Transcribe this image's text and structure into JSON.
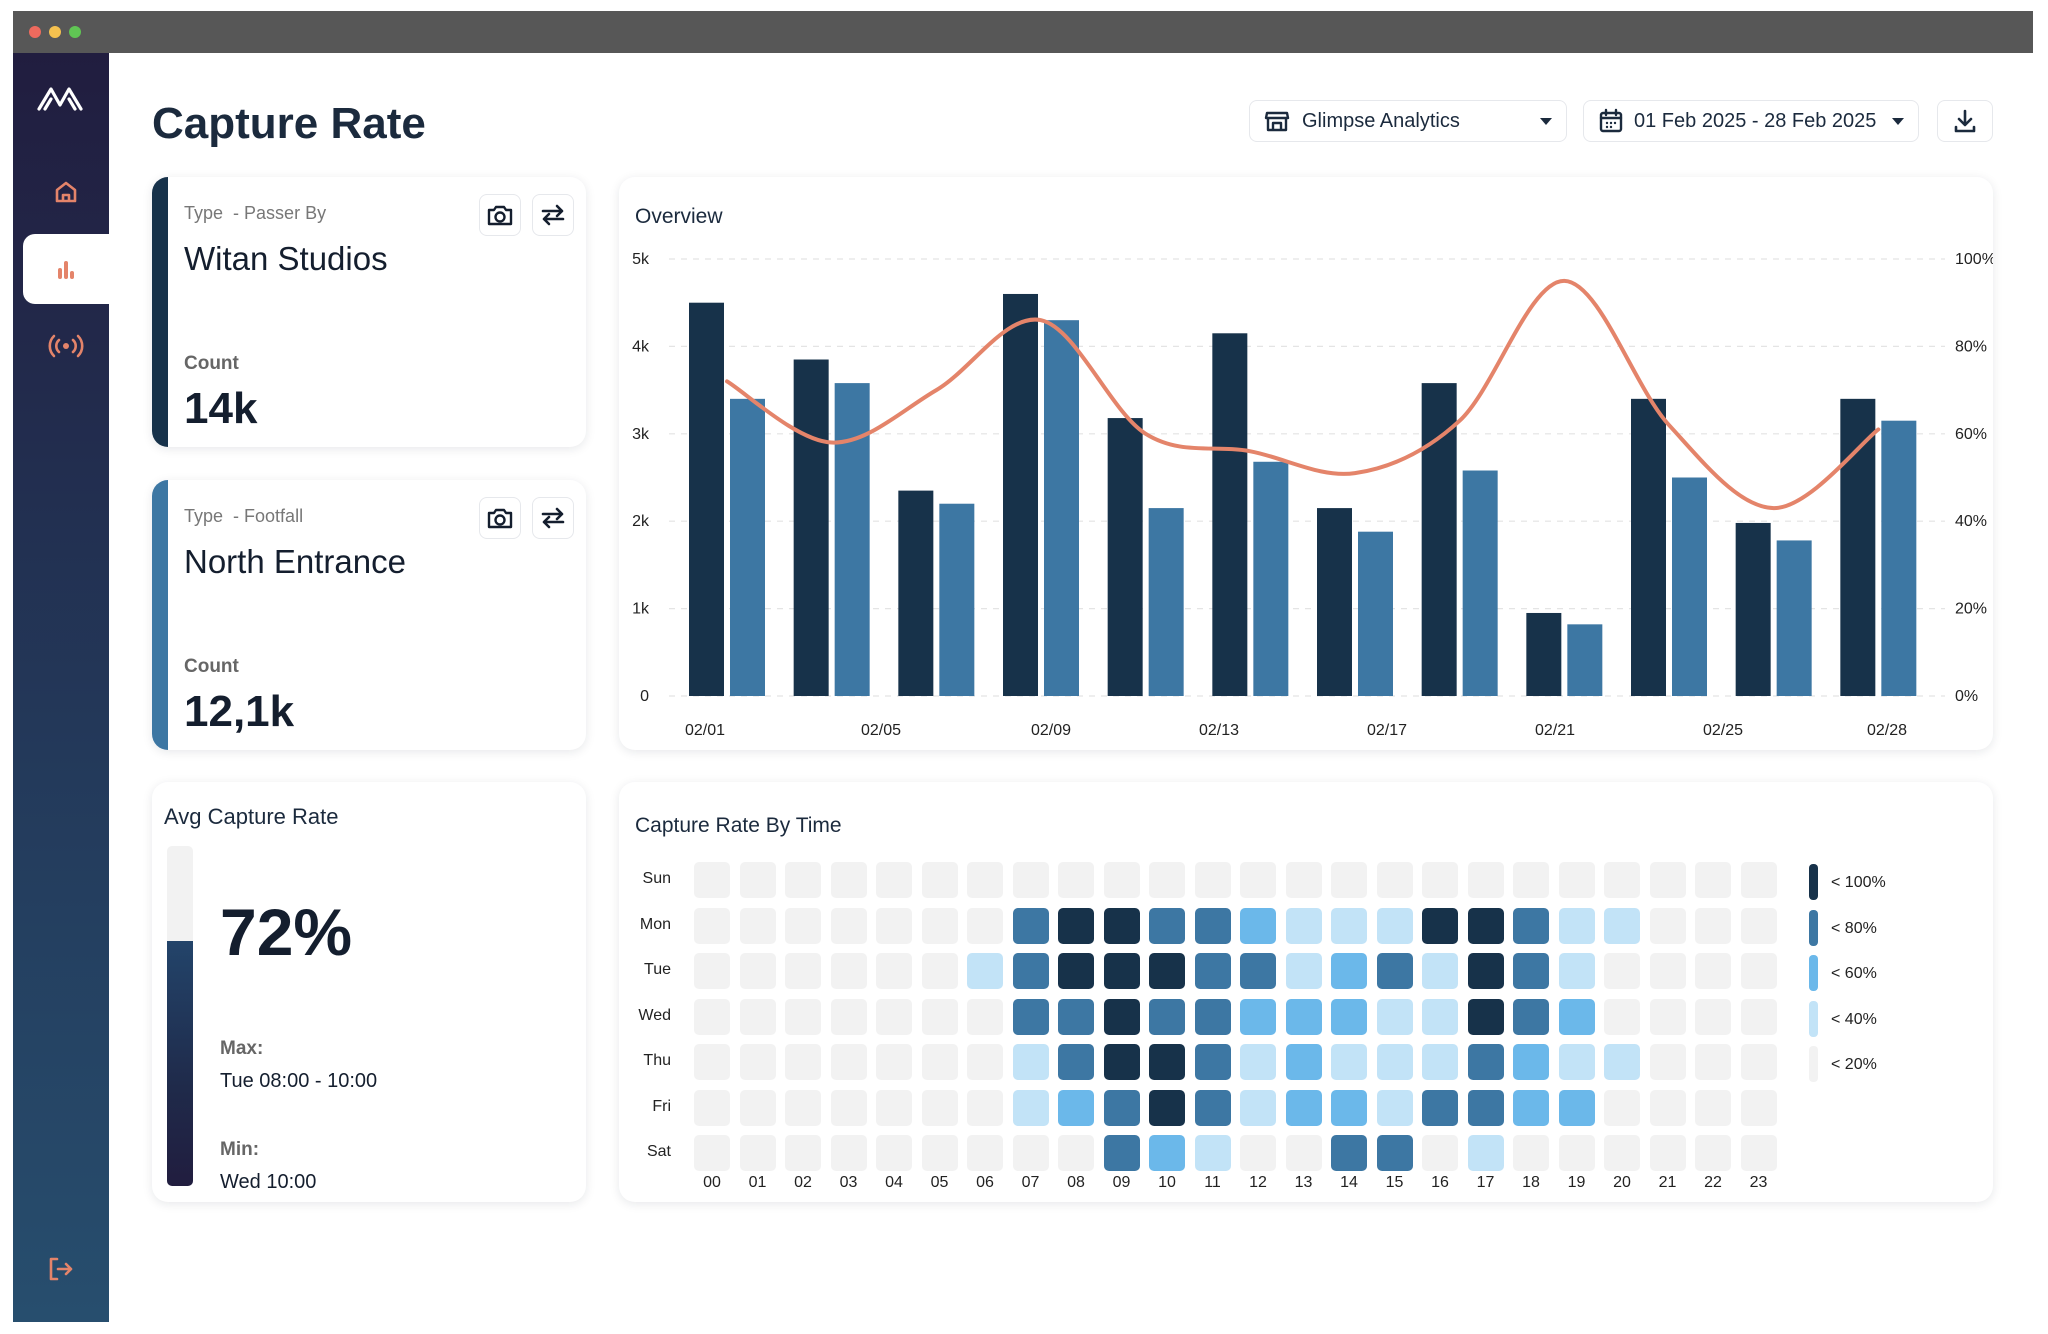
{
  "colors": {
    "dark": "#17324a",
    "mid": "#3d77a3",
    "accent_line": "#e4846a",
    "sidebar_icon": "#e4846a",
    "heat": [
      "#f2f2f2",
      "#c2e3f7",
      "#6bb8ea",
      "#3d77a3",
      "#17324a"
    ]
  },
  "header": {
    "title": "Capture Rate",
    "location_select": "Glimpse Analytics",
    "date_range": "01 Feb 2025 - 28 Feb 2025",
    "icons": {
      "location": "store-icon",
      "date": "calendar-icon",
      "download": "download-icon"
    }
  },
  "sidebar": {
    "logo": "logo-icon",
    "items": [
      {
        "icon": "home-icon",
        "active": false
      },
      {
        "icon": "bar-chart-icon",
        "active": true
      },
      {
        "icon": "broadcast-icon",
        "active": false
      }
    ],
    "logout_icon": "logout-icon"
  },
  "cards": [
    {
      "type_label": "Type",
      "type_value": "- Passer By",
      "name": "Witan Studios",
      "count_label": "Count",
      "count": "14k"
    },
    {
      "type_label": "Type",
      "type_value": "- Footfall",
      "name": "North Entrance",
      "count_label": "Count",
      "count": "12,1k"
    }
  ],
  "avg": {
    "title": "Avg Capture Rate",
    "value": "72%",
    "fill_fraction": 0.72,
    "max_label": "Max:",
    "max_value": "Tue 08:00 - 10:00",
    "min_label": "Min:",
    "min_value": "Wed 10:00"
  },
  "chart_data": {
    "type": "bar",
    "title": "Overview",
    "x_ticks": [
      "02/01",
      "02/05",
      "02/09",
      "02/13",
      "02/17",
      "02/21",
      "02/25",
      "02/28"
    ],
    "ylim": [
      0,
      5000
    ],
    "y_ticks": [
      "0",
      "1k",
      "2k",
      "3k",
      "4k",
      "5k"
    ],
    "y2lim": [
      0,
      100
    ],
    "y2_ticks": [
      "0%",
      "20%",
      "40%",
      "60%",
      "80%",
      "100%"
    ],
    "grid": true,
    "series": [
      {
        "values": [
          4500,
          3850,
          2350,
          4600,
          3180,
          4150,
          2150,
          3580,
          950,
          3400,
          1980,
          3400
        ]
      },
      {
        "values": [
          3400,
          3580,
          2200,
          4300,
          2150,
          2680,
          1880,
          2580,
          820,
          2500,
          1780,
          3150
        ]
      }
    ],
    "line_series": {
      "axis": "right",
      "values": [
        72,
        58,
        70,
        86,
        60,
        56,
        51,
        63,
        95,
        62,
        43,
        61
      ]
    }
  },
  "heatmap": {
    "title": "Capture Rate By Time",
    "days": [
      "Sun",
      "Mon",
      "Tue",
      "Wed",
      "Thu",
      "Fri",
      "Sat"
    ],
    "hours": [
      "00",
      "01",
      "02",
      "03",
      "04",
      "05",
      "06",
      "07",
      "08",
      "09",
      "10",
      "11",
      "12",
      "13",
      "14",
      "15",
      "16",
      "17",
      "18",
      "19",
      "20",
      "21",
      "22",
      "23"
    ],
    "legend": [
      "< 100%",
      "< 80%",
      "< 60%",
      "< 40%",
      "< 20%"
    ],
    "levels": [
      [
        0,
        0,
        0,
        0,
        0,
        0,
        0,
        0,
        0,
        0,
        0,
        0,
        0,
        0,
        0,
        0,
        0,
        0,
        0,
        0,
        0,
        0,
        0,
        0
      ],
      [
        0,
        0,
        0,
        0,
        0,
        0,
        0,
        3,
        4,
        4,
        3,
        3,
        2,
        1,
        1,
        1,
        4,
        4,
        3,
        1,
        1,
        0,
        0,
        0
      ],
      [
        0,
        0,
        0,
        0,
        0,
        0,
        1,
        3,
        4,
        4,
        4,
        3,
        3,
        1,
        2,
        3,
        1,
        4,
        3,
        1,
        0,
        0,
        0,
        0
      ],
      [
        0,
        0,
        0,
        0,
        0,
        0,
        0,
        3,
        3,
        4,
        3,
        3,
        2,
        2,
        2,
        1,
        1,
        4,
        3,
        2,
        0,
        0,
        0,
        0
      ],
      [
        0,
        0,
        0,
        0,
        0,
        0,
        0,
        1,
        3,
        4,
        4,
        3,
        1,
        2,
        1,
        1,
        1,
        3,
        2,
        1,
        1,
        0,
        0,
        0
      ],
      [
        0,
        0,
        0,
        0,
        0,
        0,
        0,
        1,
        2,
        3,
        4,
        3,
        1,
        2,
        2,
        1,
        3,
        3,
        2,
        2,
        0,
        0,
        0,
        0
      ],
      [
        0,
        0,
        0,
        0,
        0,
        0,
        0,
        0,
        0,
        3,
        2,
        1,
        0,
        0,
        3,
        3,
        0,
        1,
        0,
        0,
        0,
        0,
        0,
        0
      ]
    ]
  }
}
